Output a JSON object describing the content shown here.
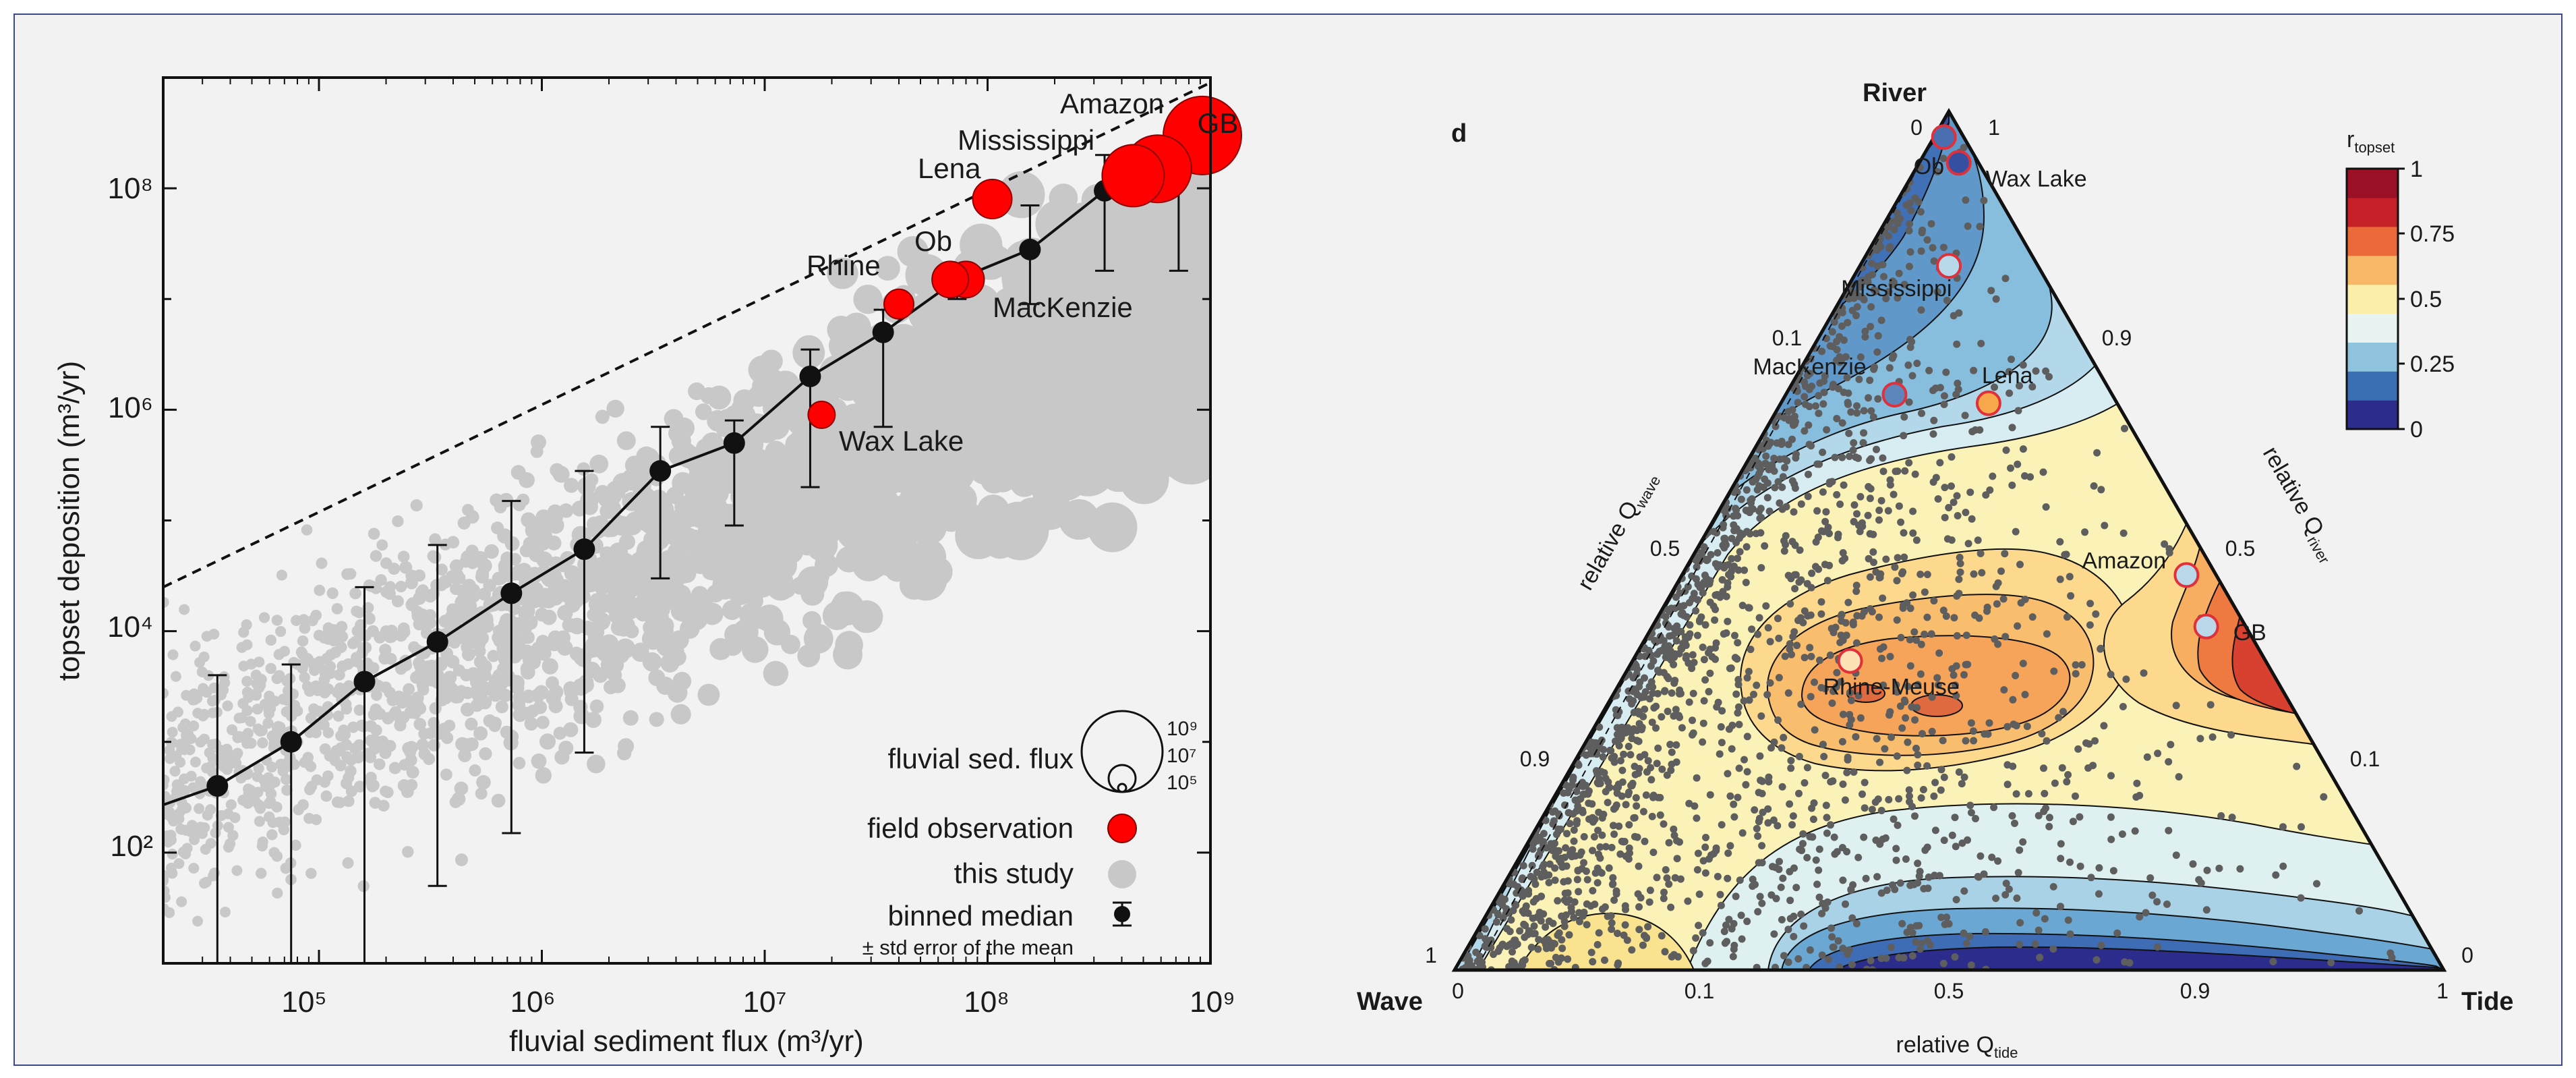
{
  "chart_data": [
    {
      "type": "scatter",
      "xlabel": "fluvial sediment flux (m³/yr)",
      "ylabel": "topset deposition (m³/yr)",
      "xscale": "log",
      "yscale": "log",
      "xlim": [
        20000,
        1000000000
      ],
      "ylim": [
        10,
        1000000000
      ],
      "x_ticks": [
        "10⁵",
        "10⁶",
        "10⁷",
        "10⁸",
        "10⁹"
      ],
      "y_ticks": [
        "10²",
        "10⁴",
        "10⁶",
        "10⁸"
      ],
      "reference_line": {
        "style": "dashed",
        "x": [
          20000,
          1000000000
        ],
        "y": [
          25000,
          900000000
        ]
      },
      "series": [
        {
          "name": "binned median",
          "error_bar_label": "± std error of the mean",
          "color": "#000000",
          "points": [
            {
              "x": 35000,
              "y": 400,
              "low": 10,
              "high": 4000
            },
            {
              "x": 75000,
              "y": 1000,
              "low": 10,
              "high": 5000
            },
            {
              "x": 160000,
              "y": 3500,
              "low": 10,
              "high": 25000
            },
            {
              "x": 340000,
              "y": 8000,
              "low": 50,
              "high": 60000
            },
            {
              "x": 730000,
              "y": 22000,
              "low": 150,
              "high": 150000
            },
            {
              "x": 1550000,
              "y": 55000,
              "low": 800,
              "high": 280000
            },
            {
              "x": 3400000,
              "y": 280000,
              "low": 30000,
              "high": 700000
            },
            {
              "x": 7300000,
              "y": 500000,
              "low": 90000,
              "high": 800000
            },
            {
              "x": 16000000,
              "y": 2000000,
              "low": 200000,
              "high": 3500000
            },
            {
              "x": 34000000,
              "y": 5000000,
              "low": 700000,
              "high": 8000000
            },
            {
              "x": 73000000,
              "y": 15000000,
              "low": 10000000,
              "high": 18000000
            },
            {
              "x": 155000000,
              "y": 28000000,
              "low": 9000000,
              "high": 70000000
            },
            {
              "x": 335000000,
              "y": 95000000,
              "low": 18000000,
              "high": 200000000
            },
            {
              "x": 720000000,
              "y": 140000000,
              "low": 18000000,
              "high": 300000000
            }
          ]
        },
        {
          "name": "field observation",
          "color": "#ff0000",
          "points": [
            {
              "label": "GB",
              "x": 1000000000,
              "y": 300000000
            },
            {
              "label": "Amazon",
              "x": 580000000,
              "y": 150000000
            },
            {
              "label": "Mississippi",
              "x": 450000000,
              "y": 130000000
            },
            {
              "label": "Lena",
              "x": 105000000,
              "y": 80000000
            },
            {
              "label": "Ob",
              "x": 80000000,
              "y": 15000000
            },
            {
              "label": "MacKenzie",
              "x": 68000000,
              "y": 15000000
            },
            {
              "label": "Rhine",
              "x": 40000000,
              "y": 9000000
            },
            {
              "label": "Wax Lake",
              "x": 18000000,
              "y": 900000
            }
          ]
        },
        {
          "name": "this study",
          "color": "#c8c8c8",
          "note": "thousands of grey points; sizes scale with fluvial sediment flux"
        }
      ],
      "size_legend": {
        "title": "fluvial sed. flux",
        "values": [
          "10⁹",
          "10⁷",
          "10⁵"
        ]
      },
      "legend": {
        "placement": "bottom-right",
        "entries": [
          "fluvial sed. flux",
          "field observation",
          "this study",
          "binned median",
          "± std error of the mean"
        ]
      }
    },
    {
      "type": "ternary-contour",
      "panel_label": "d",
      "vertices": {
        "top": "River",
        "left": "Wave",
        "right": "Tide"
      },
      "axis_labels": {
        "left": "relative Q",
        "left_sub": "wave",
        "right": "relative Q",
        "right_sub": "river",
        "bottom": "relative Q",
        "bottom_sub": "tide"
      },
      "left_ticks": [
        "0",
        "0.1",
        "0.5",
        "0.9",
        "1"
      ],
      "right_ticks": [
        "1",
        "0.9",
        "0.5",
        "0.1",
        "0"
      ],
      "bottom_ticks": [
        "0",
        "0.1",
        "0.5",
        "0.9",
        "1"
      ],
      "colorbar": {
        "title": "r",
        "title_sub": "topset",
        "ticks": [
          "1",
          "0.75",
          "0.5",
          "0.25",
          "0"
        ],
        "range": [
          0,
          1
        ],
        "colors": [
          "#2b2c8c",
          "#3b6fb3",
          "#8fc3de",
          "#e8f4f2",
          "#fbeeaa",
          "#f7b867",
          "#ec6a3a",
          "#c51f28",
          "#9b1025"
        ]
      },
      "field_deltas": [
        {
          "label": "Ob",
          "river": 0.97,
          "tide": 0.01,
          "color": "#4a6fb0"
        },
        {
          "label": "Wax Lake",
          "river": 0.94,
          "tide": 0.04,
          "color": "#3550a0"
        },
        {
          "label": "Mississippi",
          "river": 0.82,
          "tide": 0.09,
          "color": "#b7d9ea"
        },
        {
          "label": "MacKenzie",
          "river": 0.67,
          "tide": 0.11,
          "color": "#5d86bd"
        },
        {
          "label": "Lena",
          "river": 0.66,
          "tide": 0.21,
          "color": "#f7a84a"
        },
        {
          "label": "Amazon",
          "river": 0.46,
          "tide": 0.51,
          "color": "#bad8ea"
        },
        {
          "label": "GB",
          "river": 0.4,
          "tide": 0.56,
          "color": "#bad8ea"
        },
        {
          "label": "Rhine-Meuse",
          "river": 0.36,
          "tide": 0.22,
          "color": "#fde2b6"
        }
      ]
    }
  ],
  "left_labels": {
    "GB": "GB",
    "Amazon": "Amazon",
    "Mississippi": "Mississippi",
    "Lena": "Lena",
    "Ob": "Ob",
    "Rhine": "Rhine",
    "MacKenzie": "MacKenzie",
    "WaxLake": "Wax Lake"
  },
  "legend_labels": {
    "flux": "fluvial sed. flux",
    "field": "field observation",
    "study": "this study",
    "median": "binned median",
    "stderr": "± std error of the mean",
    "size_hi": "10⁹",
    "size_mid": "10⁷",
    "size_lo": "10⁵"
  }
}
